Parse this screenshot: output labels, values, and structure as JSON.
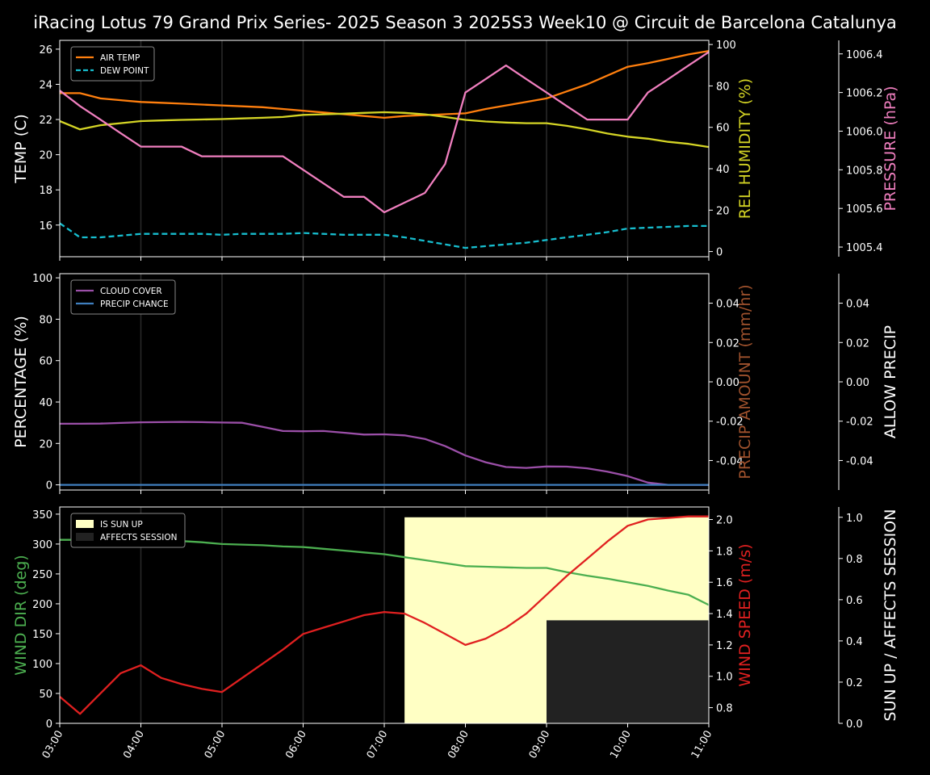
{
  "title": "iRacing Lotus 79 Grand Prix Series- 2025 Season 3 2025S3 Week10 @ Circuit de Barcelona Catalunya",
  "x_ticks": [
    "03:00",
    "04:00",
    "05:00",
    "06:00",
    "07:00",
    "08:00",
    "09:00",
    "10:00",
    "11:00"
  ],
  "colors": {
    "background": "#000000",
    "axis": "#ffffff",
    "air_temp": "#ff7f0e",
    "dew_point": "#17becf",
    "humidity": "#d4d425",
    "pressure": "#f07fbf",
    "cloud": "#9b4fa8",
    "precip_chance": "#3f7fbf",
    "precip_amount": "#a0522d",
    "wind_dir": "#4caf50",
    "wind_speed": "#e02020",
    "sun": "#ffffc4",
    "affects": "#222222"
  },
  "chart_data": [
    {
      "type": "line",
      "panel": "temperature",
      "x": [
        "03:00",
        "03:15",
        "03:30",
        "03:45",
        "04:00",
        "04:15",
        "04:30",
        "04:45",
        "05:00",
        "05:15",
        "05:30",
        "05:45",
        "06:00",
        "06:15",
        "06:30",
        "06:45",
        "07:00",
        "07:15",
        "07:30",
        "07:45",
        "08:00",
        "08:15",
        "08:30",
        "08:45",
        "09:00",
        "09:15",
        "09:30",
        "09:45",
        "10:00",
        "10:15",
        "10:30",
        "10:45",
        "11:00"
      ],
      "ylabel": "TEMP (C)",
      "ylim": [
        14.2,
        26.5
      ],
      "yticks": [
        16,
        18,
        20,
        22,
        24,
        26
      ],
      "y2label": "REL HUMIDITY (%)",
      "y2lim": [
        -2.5,
        102
      ],
      "y2ticks": [
        0,
        20,
        40,
        60,
        80,
        100
      ],
      "y3label": "PRESSURE (hPa)",
      "y3lim": [
        1005.35,
        1006.47
      ],
      "y3ticks": [
        "1005.4",
        "1005.6",
        "1005.8",
        "1006.0",
        "1006.2",
        "1006.4"
      ],
      "legend": "top-left",
      "series": [
        {
          "name": "AIR TEMP",
          "axis": "left",
          "color": "#ff7f0e",
          "dash": false,
          "values": [
            23.5,
            23.5,
            23.2,
            23.1,
            23.0,
            22.95,
            22.9,
            22.85,
            22.8,
            22.75,
            22.7,
            22.6,
            22.5,
            22.4,
            22.3,
            22.2,
            22.1,
            22.2,
            22.25,
            22.3,
            22.35,
            22.6,
            22.8,
            23.0,
            23.2,
            23.6,
            24.0,
            24.5,
            25.0,
            25.2,
            25.45,
            25.7,
            25.9
          ]
        },
        {
          "name": "DEW POINT",
          "axis": "left",
          "color": "#17becf",
          "dash": true,
          "values": [
            16.1,
            15.3,
            15.3,
            15.4,
            15.5,
            15.5,
            15.5,
            15.5,
            15.45,
            15.5,
            15.5,
            15.5,
            15.55,
            15.5,
            15.45,
            15.45,
            15.45,
            15.3,
            15.1,
            14.9,
            14.7,
            14.8,
            14.9,
            15.0,
            15.15,
            15.3,
            15.45,
            15.6,
            15.8,
            15.85,
            15.9,
            15.95,
            15.95
          ]
        },
        {
          "name": "REL HUMIDITY",
          "axis": "right",
          "color": "#d4d425",
          "dash": false,
          "values": [
            63,
            59,
            61,
            62,
            63,
            63.3,
            63.6,
            63.8,
            64,
            64.3,
            64.6,
            65,
            66,
            66.3,
            66.6,
            67,
            67.3,
            67,
            66.3,
            65,
            63.6,
            62.8,
            62.3,
            62,
            62,
            60.7,
            59,
            57,
            55.5,
            54.5,
            53,
            52,
            50.5
          ]
        },
        {
          "name": "PRESSURE",
          "axis": "far-right",
          "color": "#f07fbf",
          "dash": false,
          "values": [
            1006.21,
            1006.13,
            1006.06,
            1005.99,
            1005.92,
            1005.92,
            1005.92,
            1005.87,
            1005.87,
            1005.87,
            1005.87,
            1005.87,
            1005.8,
            1005.73,
            1005.66,
            1005.66,
            1005.58,
            1005.63,
            1005.68,
            1005.83,
            1006.2,
            1006.27,
            1006.34,
            1006.27,
            1006.2,
            1006.13,
            1006.06,
            1006.06,
            1006.06,
            1006.2,
            1006.27,
            1006.34,
            1006.41
          ]
        }
      ]
    },
    {
      "type": "line",
      "panel": "precipitation",
      "ylabel": "PERCENTAGE (%)",
      "ylim": [
        -2.5,
        102
      ],
      "yticks": [
        0,
        20,
        40,
        60,
        80,
        100
      ],
      "y2label": "PRECIP AMOUNT (mm/hr)",
      "y2lim": [
        -0.055,
        0.055
      ],
      "y2ticks": [
        "-0.04",
        "-0.02",
        "0.00",
        "0.02",
        "0.04"
      ],
      "y3label": "ALLOW PRECIP",
      "y3lim": [
        -0.055,
        0.055
      ],
      "y3ticks": [
        "-0.04",
        "-0.02",
        "0.00",
        "0.02",
        "0.04"
      ],
      "legend": "top-left",
      "series": [
        {
          "name": "CLOUD COVER",
          "axis": "left",
          "color": "#9b4fa8",
          "values": [
            29.5,
            29.5,
            29.6,
            29.9,
            30.2,
            30.3,
            30.4,
            30.3,
            30.1,
            30.0,
            28,
            26,
            25.9,
            26,
            25.2,
            24.3,
            24.4,
            23.9,
            22.2,
            18.7,
            14.2,
            10.9,
            8.6,
            8.2,
            8.9,
            8.8,
            8,
            6.4,
            4.2,
            1.1,
            0,
            0,
            0
          ]
        },
        {
          "name": "PRECIP CHANCE",
          "axis": "left",
          "color": "#3f7fbf",
          "values": [
            0,
            0,
            0,
            0,
            0,
            0,
            0,
            0,
            0,
            0,
            0,
            0,
            0,
            0,
            0,
            0,
            0,
            0,
            0,
            0,
            0,
            0,
            0,
            0,
            0,
            0,
            0,
            0,
            0,
            0,
            0,
            0,
            0
          ]
        }
      ]
    },
    {
      "type": "line",
      "panel": "wind",
      "ylabel": "WIND DIR (deg)",
      "ylim": [
        0,
        362
      ],
      "yticks": [
        0,
        50,
        100,
        150,
        200,
        250,
        300,
        350
      ],
      "y2label": "WIND SPEED (m/s)",
      "y2lim": [
        0.7,
        2.08
      ],
      "y2ticks": [
        "0.8",
        "1.0",
        "1.2",
        "1.4",
        "1.6",
        "1.8",
        "2.0"
      ],
      "y3label": "SUN UP / AFFECTS SESSION",
      "y3lim": [
        0,
        1.05
      ],
      "y3ticks": [
        "0.0",
        "0.2",
        "0.4",
        "0.6",
        "0.8",
        "1.0"
      ],
      "legend": "top-left",
      "areas": [
        {
          "name": "IS SUN UP",
          "color": "#ffffc4",
          "from": "07:15",
          "to": "11:00",
          "value": 1.0
        },
        {
          "name": "AFFECTS SESSION",
          "color": "#222222",
          "from": "09:00",
          "to": "11:00",
          "value": 0.5
        }
      ],
      "series": [
        {
          "name": "WIND DIR",
          "axis": "left",
          "color": "#4caf50",
          "values": [
            307,
            307,
            306,
            305,
            304,
            304,
            305,
            303,
            300,
            299,
            298,
            296,
            295,
            292,
            289,
            286,
            283,
            278,
            273,
            268,
            263,
            262,
            261,
            260,
            260,
            253,
            247,
            242,
            236,
            230,
            222,
            215,
            198
          ]
        },
        {
          "name": "WIND SPEED",
          "axis": "right",
          "color": "#e02020",
          "values": [
            0.87,
            0.76,
            0.89,
            1.02,
            1.07,
            0.99,
            0.95,
            0.92,
            0.9,
            0.99,
            1.08,
            1.17,
            1.27,
            1.31,
            1.35,
            1.39,
            1.41,
            1.4,
            1.34,
            1.27,
            1.2,
            1.24,
            1.31,
            1.4,
            1.52,
            1.64,
            1.75,
            1.86,
            1.96,
            2.0,
            2.01,
            2.02,
            2.02
          ]
        }
      ]
    }
  ]
}
